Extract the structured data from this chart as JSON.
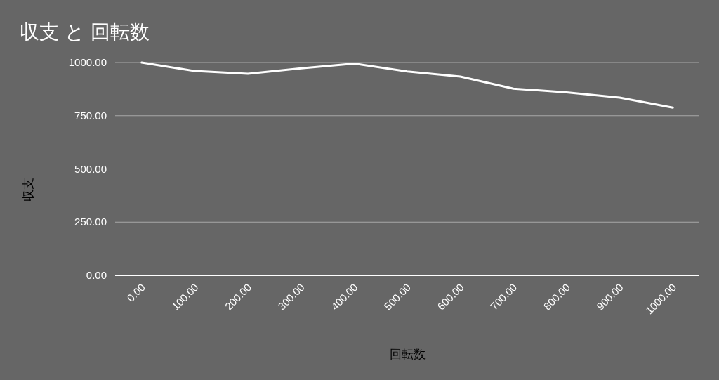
{
  "chart_data": {
    "type": "line",
    "title": "収支 と 回転数",
    "xlabel": "回転数",
    "ylabel": "収支",
    "categories": [
      "0.00",
      "100.00",
      "200.00",
      "300.00",
      "400.00",
      "500.00",
      "600.00",
      "700.00",
      "800.00",
      "900.00",
      "1000.00"
    ],
    "series": [
      {
        "color": "#ffffff",
        "values": [
          1000,
          960,
          947,
          973,
          995,
          958,
          934,
          877,
          860,
          835,
          788
        ]
      }
    ],
    "ylim": [
      0,
      1000
    ],
    "yticks": [
      {
        "value": 0,
        "label": "0.00"
      },
      {
        "value": 250,
        "label": "250.00"
      },
      {
        "value": 500,
        "label": "500.00"
      },
      {
        "value": 750,
        "label": "750.00"
      },
      {
        "value": 1000,
        "label": "1000.00"
      }
    ],
    "grid": "y",
    "marker": "none",
    "line_style": "solid"
  }
}
